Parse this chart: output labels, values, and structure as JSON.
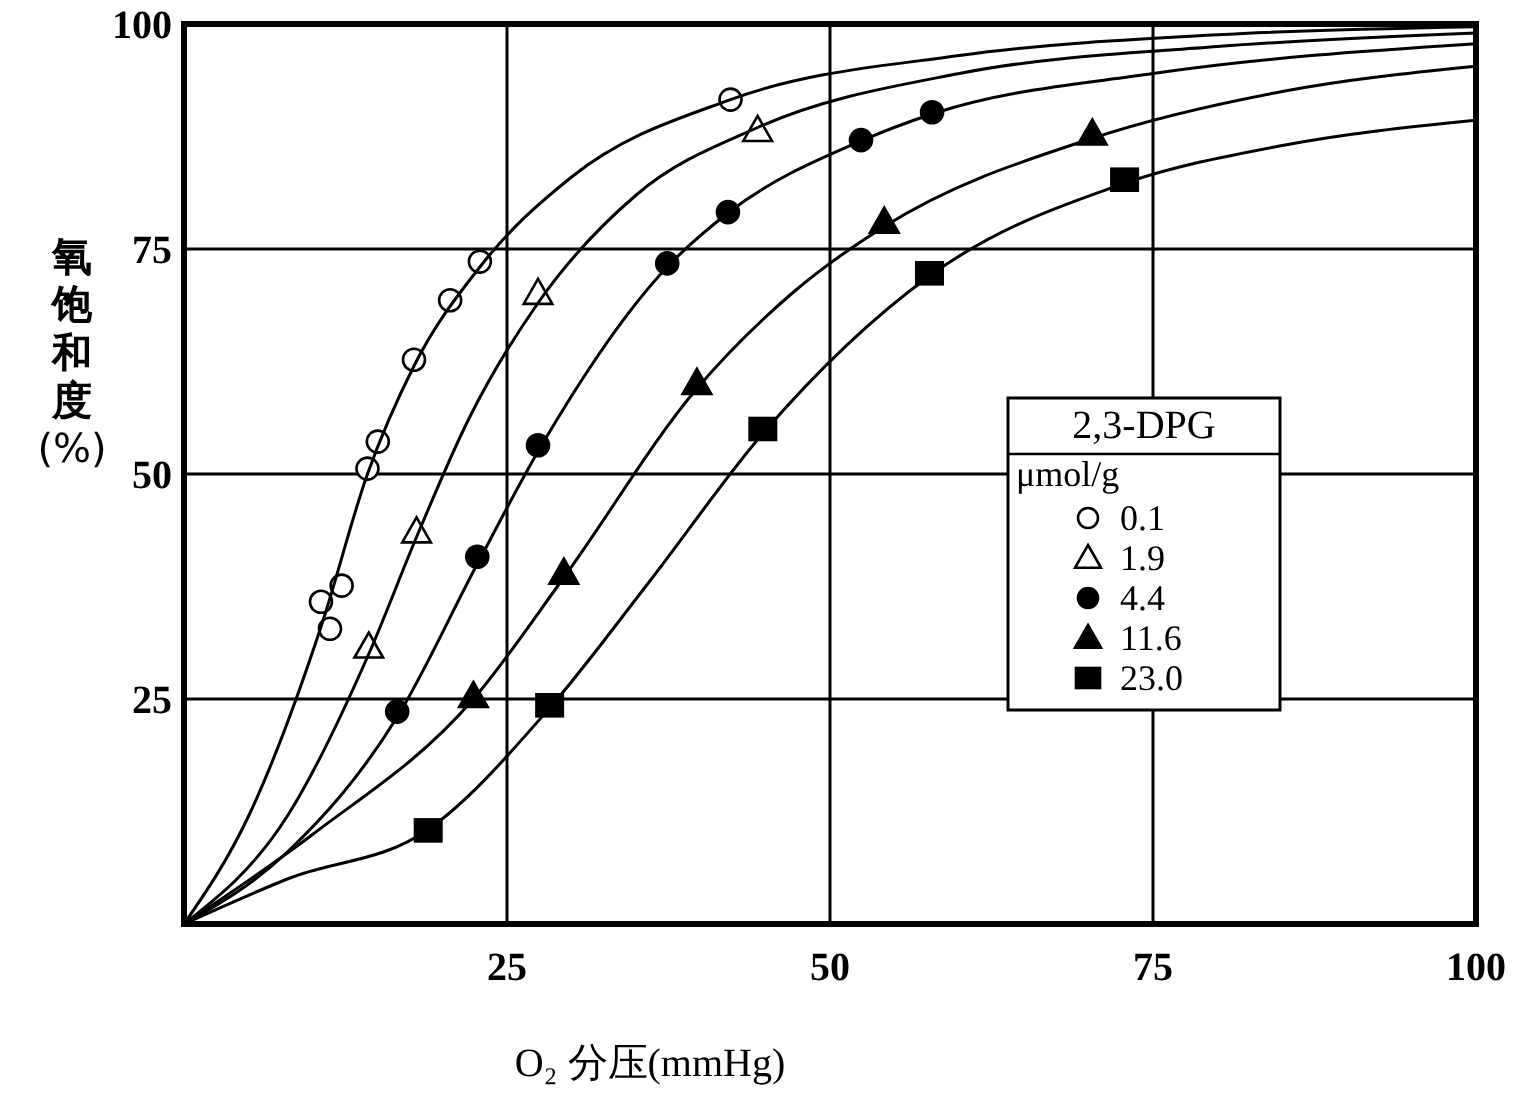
{
  "chart_data": {
    "type": "scatter",
    "xlabel": "O₂ 分压(mmHg)",
    "ylabel": "氧饱和度(%)",
    "legend_title": "2,3-DPG\nμmol/g",
    "xlim": [
      0,
      100
    ],
    "ylim": [
      0,
      100
    ],
    "xticks": [
      25,
      50,
      75,
      100
    ],
    "yticks": [
      25,
      50,
      75,
      100
    ],
    "grid": true,
    "legend": "right",
    "series": [
      {
        "name": "0.1",
        "color": "#ffffff",
        "marker": "circle",
        "x": [
          10.6,
          11.3,
          12.2,
          14.2,
          15.0,
          17.8,
          20.6,
          22.9,
          42.3
        ],
        "values": [
          35.8,
          32.8,
          37.6,
          50.6,
          53.6,
          62.7,
          69.3,
          73.6,
          91.6
        ]
      },
      {
        "name": "1.9",
        "color": "#ffffff",
        "marker": "triangle",
        "x": [
          14.3,
          18.0,
          27.4,
          44.4
        ],
        "values": [
          30.8,
          43.6,
          70.1,
          88.2
        ]
      },
      {
        "name": "4.4",
        "color": "#000000",
        "marker": "circle",
        "x": [
          16.5,
          22.7,
          27.4,
          37.4,
          42.1,
          52.4,
          57.9
        ],
        "values": [
          23.6,
          40.8,
          53.2,
          73.4,
          79.1,
          87.1,
          90.2
        ]
      },
      {
        "name": "11.6",
        "color": "#000000",
        "marker": "triangle",
        "x": [
          22.4,
          29.4,
          39.7,
          54.2,
          70.3
        ],
        "values": [
          25.3,
          39.0,
          60.1,
          78.0,
          87.8
        ]
      },
      {
        "name": "23.0",
        "color": "#000000",
        "marker": "square",
        "x": [
          18.9,
          28.3,
          44.8,
          57.7,
          72.8
        ],
        "values": [
          10.4,
          24.3,
          55.0,
          72.3,
          82.7
        ]
      },
      {
        "type": "line",
        "color": "#000000",
        "marker": "none",
        "x": [
          0,
          5,
          10.6,
          14.2,
          17.8,
          22.9,
          30,
          42.3,
          60,
          80,
          100
        ],
        "values": [
          0,
          12,
          33,
          50,
          62,
          73,
          83,
          91.6,
          96.5,
          98.8,
          99.7
        ]
      },
      {
        "type": "line",
        "color": "#000000",
        "marker": "none",
        "x": [
          0,
          8,
          14.3,
          18,
          22,
          27.4,
          35,
          44.4,
          60,
          80,
          100
        ],
        "values": [
          0,
          12,
          30,
          43,
          56,
          69,
          81,
          88.5,
          94.5,
          97.5,
          99
        ]
      },
      {
        "type": "line",
        "color": "#000000",
        "marker": "none",
        "x": [
          0,
          8,
          16.5,
          22.7,
          27.4,
          37.4,
          42.1,
          52.4,
          57.9,
          75,
          100
        ],
        "values": [
          0,
          8,
          23,
          40,
          52.5,
          73,
          79,
          87,
          90,
          94.5,
          97.8
        ]
      },
      {
        "type": "line",
        "color": "#000000",
        "marker": "none",
        "x": [
          0,
          10,
          22.4,
          29.4,
          39.7,
          47,
          54.2,
          70.3,
          85,
          100
        ],
        "values": [
          0,
          10,
          25,
          38.5,
          59.5,
          70,
          77.5,
          87.3,
          92.5,
          95.3
        ]
      },
      {
        "type": "line",
        "color": "#000000",
        "marker": "none",
        "x": [
          0,
          8,
          18.9,
          28.3,
          36,
          44.8,
          57.7,
          72.8,
          85,
          100
        ],
        "values": [
          0,
          5,
          10.5,
          24,
          38,
          54.5,
          72,
          82.3,
          86.5,
          89.3
        ]
      }
    ]
  }
}
